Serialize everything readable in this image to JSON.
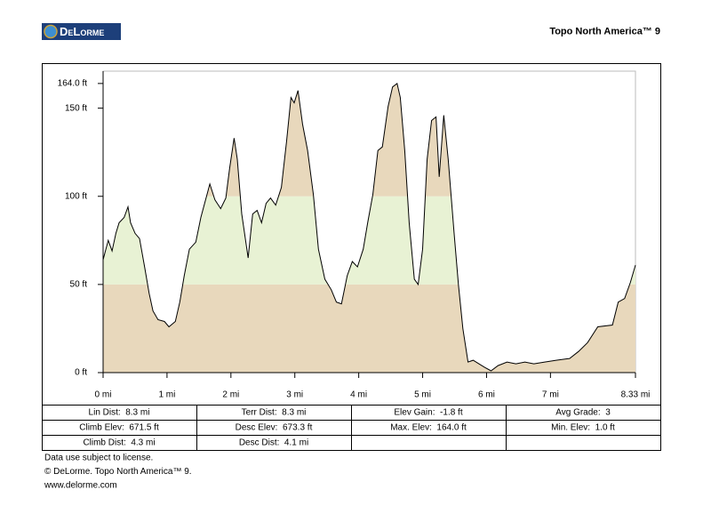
{
  "header": {
    "logo": "DeLorme",
    "product": "Topo North America™ 9"
  },
  "chart_data": {
    "type": "area",
    "x": [
      0,
      0.08,
      0.14,
      0.2,
      0.25,
      0.33,
      0.39,
      0.43,
      0.5,
      0.57,
      0.65,
      0.72,
      0.78,
      0.86,
      0.96,
      1.03,
      1.13,
      1.2,
      1.27,
      1.35,
      1.45,
      1.53,
      1.67,
      1.75,
      1.84,
      1.92,
      1.98,
      2.05,
      2.1,
      2.17,
      2.27,
      2.34,
      2.41,
      2.48,
      2.55,
      2.62,
      2.7,
      2.79,
      2.87,
      2.94,
      2.99,
      3.05,
      3.12,
      3.2,
      3.29,
      3.37,
      3.47,
      3.57,
      3.65,
      3.73,
      3.82,
      3.9,
      3.98,
      4.07,
      4.14,
      4.22,
      4.3,
      4.37,
      4.46,
      4.53,
      4.6,
      4.65,
      4.72,
      4.79,
      4.87,
      4.93,
      5.0,
      5.07,
      5.14,
      5.21,
      5.26,
      5.33,
      5.4,
      5.49,
      5.56,
      5.63,
      5.71,
      5.79,
      5.88,
      5.97,
      6.07,
      6.18,
      6.32,
      6.46,
      6.6,
      6.74,
      6.91,
      7.09,
      7.3,
      7.44,
      7.58,
      7.74,
      7.97,
      8.06,
      8.16,
      8.25,
      8.33
    ],
    "y": [
      64,
      75,
      69,
      79,
      85,
      88,
      94,
      85,
      79,
      76,
      60,
      45,
      35,
      30,
      29,
      26,
      29,
      40,
      55,
      70,
      74,
      88,
      107,
      98,
      93,
      99,
      116,
      133,
      121,
      90,
      65,
      90,
      92,
      85,
      96,
      99,
      95,
      105,
      131,
      156,
      153,
      160,
      141,
      126,
      101,
      70,
      53,
      47,
      40,
      39,
      55,
      63,
      60,
      70,
      85,
      101,
      126,
      128,
      151,
      162,
      164,
      156,
      126,
      85,
      53,
      50,
      70,
      121,
      143,
      145,
      111,
      146,
      121,
      80,
      50,
      25,
      6,
      7,
      5,
      3,
      1,
      4,
      6,
      5,
      6,
      5,
      6,
      7,
      8,
      12,
      17,
      26,
      27,
      40,
      42,
      51,
      61
    ],
    "xlim": [
      0,
      8.33
    ],
    "ylim": [
      0,
      171
    ],
    "xticks": [
      {
        "value": 0,
        "label": "0 mi"
      },
      {
        "value": 1,
        "label": "1 mi"
      },
      {
        "value": 2,
        "label": "2 mi"
      },
      {
        "value": 3,
        "label": "3 mi"
      },
      {
        "value": 4,
        "label": "4 mi"
      },
      {
        "value": 5,
        "label": "5 mi"
      },
      {
        "value": 6,
        "label": "6 mi"
      },
      {
        "value": 7,
        "label": "7 mi"
      },
      {
        "value": 8.33,
        "label": "8.33 mi"
      }
    ],
    "yticks": [
      {
        "value": 0,
        "label": "0 ft"
      },
      {
        "value": 50,
        "label": "50 ft"
      },
      {
        "value": 100,
        "label": "100 ft"
      },
      {
        "value": 150,
        "label": "150 ft"
      },
      {
        "value": 164,
        "label": "164.0 ft"
      }
    ],
    "band_breaks": [
      50,
      100
    ],
    "band_colors": [
      "#e8d8bc",
      "#e8f2d4",
      "#e8d8bc"
    ],
    "line_color": "#000000"
  },
  "stats": [
    [
      "Lin Dist:  8.3 mi",
      "Terr Dist:  8.3 mi",
      "Elev Gain:  -1.8 ft",
      "Avg Grade:  3"
    ],
    [
      "Climb Elev:  671.5 ft",
      "Desc Elev:  673.3 ft",
      "Max. Elev:  164.0 ft",
      "Min. Elev:  1.0 ft"
    ],
    [
      "Climb Dist:  4.3 mi",
      "Desc Dist:  4.1 mi"
    ]
  ],
  "footer": [
    "Data use subject to license.",
    "© DeLorme. Topo North America™ 9.",
    "www.delorme.com"
  ]
}
